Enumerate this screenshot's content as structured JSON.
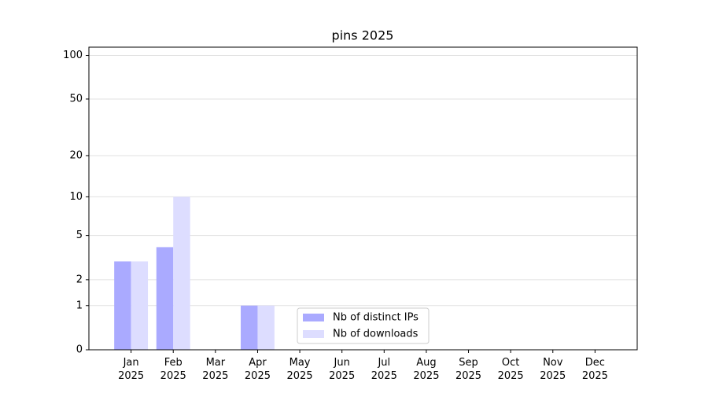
{
  "chart_data": {
    "type": "bar",
    "title": "pins 2025",
    "categories": [
      "Jan 2025",
      "Feb 2025",
      "Mar 2025",
      "Apr 2025",
      "May 2025",
      "Jun 2025",
      "Jul 2025",
      "Aug 2025",
      "Sep 2025",
      "Oct 2025",
      "Nov 2025",
      "Dec 2025"
    ],
    "series": [
      {
        "name": "Nb of distinct IPs",
        "color": "#aaaaff",
        "values": [
          3,
          4,
          0,
          1,
          0,
          0,
          0,
          0,
          0,
          0,
          0,
          0
        ]
      },
      {
        "name": "Nb of downloads",
        "color": "#ddddff",
        "values": [
          3,
          10,
          0,
          1,
          0,
          0,
          0,
          0,
          0,
          0,
          0,
          0
        ]
      }
    ],
    "yscale": "log1p",
    "ylim": [
      0,
      114
    ],
    "yticks": [
      0,
      1,
      2,
      5,
      10,
      20,
      50,
      100
    ],
    "grid": true,
    "legend": "lower center"
  }
}
